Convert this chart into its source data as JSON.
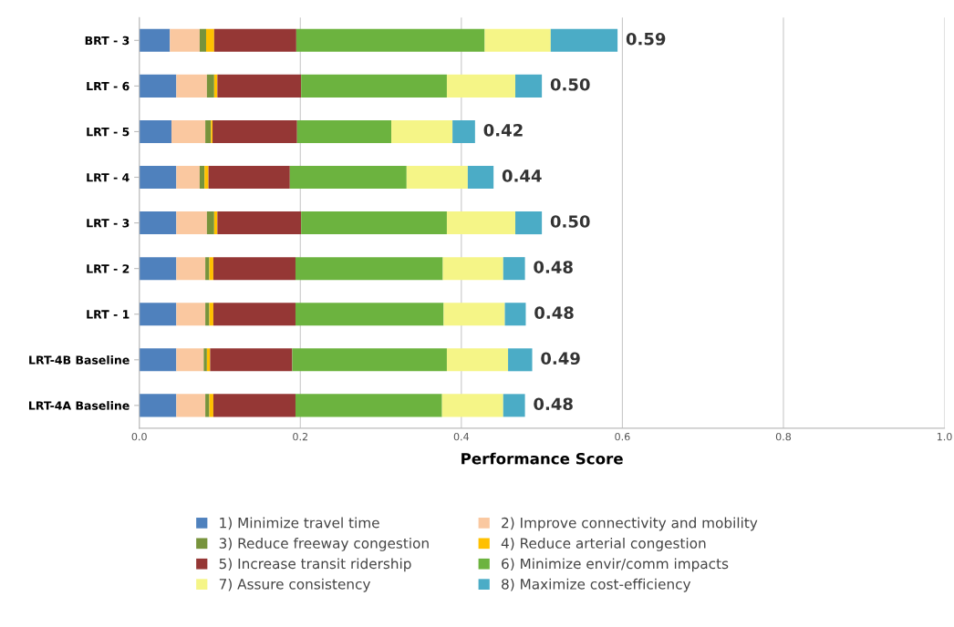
{
  "chart_data": {
    "type": "bar",
    "orientation": "horizontal",
    "stacked": true,
    "categories": [
      "BRT - 3",
      "LRT - 6",
      "LRT - 5",
      "LRT - 4",
      "LRT - 3",
      "LRT - 2",
      "LRT - 1",
      "LRT-4B Baseline",
      "LRT-4A Baseline"
    ],
    "series": [
      {
        "name": "1) Minimize travel time",
        "color": "#4f81bd",
        "values": [
          0.038,
          0.046,
          0.04,
          0.046,
          0.046,
          0.046,
          0.046,
          0.046,
          0.046
        ]
      },
      {
        "name": "2) Improve connectivity and mobility",
        "color": "#fac8a0",
        "values": [
          0.037,
          0.038,
          0.042,
          0.029,
          0.038,
          0.036,
          0.036,
          0.034,
          0.036
        ]
      },
      {
        "name": "3) Reduce freeway congestion",
        "color": "#77933c",
        "values": [
          0.008,
          0.009,
          0.007,
          0.006,
          0.009,
          0.005,
          0.005,
          0.004,
          0.005
        ]
      },
      {
        "name": "4) Reduce arterial congestion",
        "color": "#ffc000",
        "values": [
          0.01,
          0.004,
          0.002,
          0.005,
          0.004,
          0.005,
          0.005,
          0.004,
          0.005
        ]
      },
      {
        "name": "5) Increase transit ridership",
        "color": "#953735",
        "values": [
          0.102,
          0.104,
          0.105,
          0.101,
          0.104,
          0.102,
          0.102,
          0.102,
          0.102
        ]
      },
      {
        "name": "6) Minimize envir/comm impacts",
        "color": "#6cb33f",
        "values": [
          0.234,
          0.181,
          0.117,
          0.145,
          0.181,
          0.183,
          0.184,
          0.192,
          0.182
        ]
      },
      {
        "name": "7) Assure consistency",
        "color": "#f5f587",
        "values": [
          0.082,
          0.085,
          0.076,
          0.076,
          0.085,
          0.075,
          0.076,
          0.076,
          0.076
        ]
      },
      {
        "name": "8) Maximize cost-efficiency",
        "color": "#4bacc6",
        "values": [
          0.083,
          0.033,
          0.028,
          0.032,
          0.033,
          0.027,
          0.026,
          0.03,
          0.027
        ]
      }
    ],
    "totals": [
      "0.59",
      "0.50",
      "0.42",
      "0.44",
      "0.50",
      "0.48",
      "0.48",
      "0.49",
      "0.48"
    ],
    "xlabel": "Performance Score",
    "xlim": [
      0,
      1
    ],
    "xticks": [
      {
        "value": 0,
        "label": "0.0"
      },
      {
        "value": 0.2,
        "label": "0.2"
      },
      {
        "value": 0.4,
        "label": "0.4"
      },
      {
        "value": 0.6,
        "label": "0.6"
      },
      {
        "value": 0.8,
        "label": "0.8"
      },
      {
        "value": 1,
        "label": "1.0"
      }
    ],
    "grid": "x",
    "legend": "bottom"
  }
}
